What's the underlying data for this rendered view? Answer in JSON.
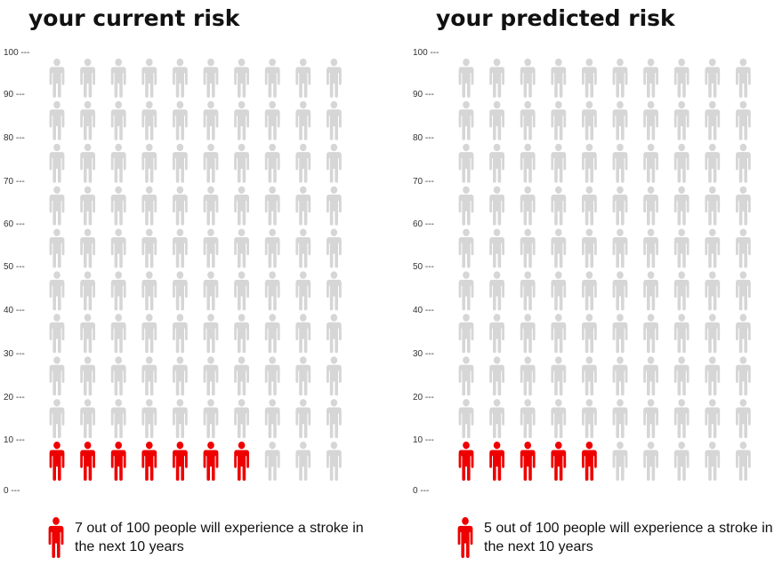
{
  "chart_data": [
    {
      "type": "icon-array",
      "title": "your current risk",
      "total": 100,
      "affected": 7,
      "ylim": [
        0,
        100
      ],
      "ytick_labels": [
        "0 ---",
        "10 ---",
        "20 ---",
        "30 ---",
        "40 ---",
        "50 ---",
        "60 ---",
        "70 ---",
        "80 ---",
        "90 ---",
        "100 ---"
      ],
      "legend": "7 out of 100 people will experience a stroke in the next 10 years",
      "colors": {
        "affected": "#ee0000",
        "unaffected": "#d6d6d6"
      }
    },
    {
      "type": "icon-array",
      "title": "your predicted risk",
      "total": 100,
      "affected": 5,
      "ylim": [
        0,
        100
      ],
      "ytick_labels": [
        "0 ---",
        "10 ---",
        "20 ---",
        "30 ---",
        "40 ---",
        "50 ---",
        "60 ---",
        "70 ---",
        "80 ---",
        "90 ---",
        "100 ---"
      ],
      "legend": "5 out of 100 people will experience a stroke in the next 10 years",
      "colors": {
        "affected": "#ee0000",
        "unaffected": "#d6d6d6"
      }
    }
  ]
}
